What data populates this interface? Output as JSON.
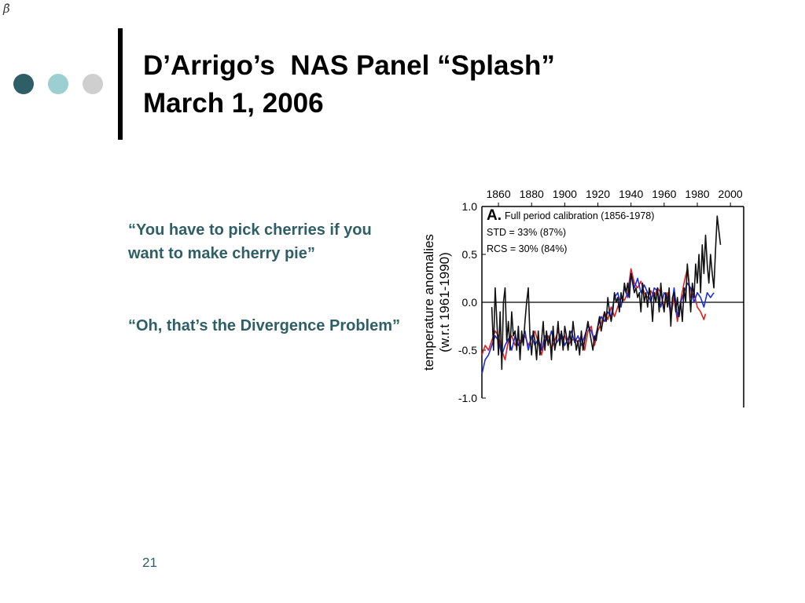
{
  "slide": {
    "corner_glyph": "β̄",
    "title_line1": "D’Arrigo’s  NAS Panel “Splash”",
    "title_line2": "March 1, 2006",
    "quote1": "“You have to pick cherries if you want to make cherry pie”",
    "quote2": "“Oh, that’s the Divergence Problem”",
    "page_number": "21",
    "colors": {
      "dot1": "#2f5f66",
      "dot2": "#9ccfd1",
      "dot3": "#cfcfcf",
      "quote_text": "#2f5f66",
      "page_number": "#2f5f66"
    }
  },
  "chart_data": {
    "type": "line",
    "panel_label": "A.",
    "annotation": "Full period calibration (1856-1978)",
    "ylabel_line1": "temperature anomalies",
    "ylabel_line2": "(w.r.t 1961-1990)",
    "x_ticks": [
      1860,
      1880,
      1900,
      1920,
      1940,
      1960,
      1980,
      2000
    ],
    "xlim": [
      1850,
      2008
    ],
    "y_ticks": [
      1.0,
      0.5,
      0.0,
      -0.5,
      -1.0
    ],
    "ylim": [
      -1.0,
      1.0
    ],
    "y_tick_labels": [
      "1.0",
      "0.5",
      "0.0",
      "-0.5",
      "-1.0"
    ],
    "zero_line": true,
    "series": [
      {
        "name": "STD = 33% (87%)",
        "color": "#e02020",
        "points": [
          [
            1850,
            -0.55
          ],
          [
            1852,
            -0.45
          ],
          [
            1854,
            -0.5
          ],
          [
            1856,
            -0.4
          ],
          [
            1858,
            -0.3
          ],
          [
            1860,
            -0.35
          ],
          [
            1862,
            -0.5
          ],
          [
            1864,
            -0.6
          ],
          [
            1866,
            -0.4
          ],
          [
            1868,
            -0.35
          ],
          [
            1870,
            -0.45
          ],
          [
            1872,
            -0.38
          ],
          [
            1874,
            -0.42
          ],
          [
            1876,
            -0.35
          ],
          [
            1878,
            -0.45
          ],
          [
            1880,
            -0.38
          ],
          [
            1882,
            -0.3
          ],
          [
            1884,
            -0.42
          ],
          [
            1886,
            -0.55
          ],
          [
            1888,
            -0.4
          ],
          [
            1890,
            -0.35
          ],
          [
            1892,
            -0.48
          ],
          [
            1894,
            -0.4
          ],
          [
            1896,
            -0.3
          ],
          [
            1898,
            -0.38
          ],
          [
            1900,
            -0.35
          ],
          [
            1902,
            -0.45
          ],
          [
            1904,
            -0.4
          ],
          [
            1906,
            -0.38
          ],
          [
            1908,
            -0.42
          ],
          [
            1910,
            -0.35
          ],
          [
            1912,
            -0.5
          ],
          [
            1914,
            -0.3
          ],
          [
            1916,
            -0.25
          ],
          [
            1918,
            -0.45
          ],
          [
            1920,
            -0.3
          ],
          [
            1922,
            -0.22
          ],
          [
            1924,
            -0.1
          ],
          [
            1926,
            -0.18
          ],
          [
            1928,
            -0.05
          ],
          [
            1930,
            -0.15
          ],
          [
            1932,
            -0.05
          ],
          [
            1934,
            0.05
          ],
          [
            1936,
            0.02
          ],
          [
            1938,
            0.1
          ],
          [
            1940,
            0.35
          ],
          [
            1942,
            0.2
          ],
          [
            1944,
            0.15
          ],
          [
            1946,
            0.22
          ],
          [
            1948,
            0.1
          ],
          [
            1950,
            0.05
          ],
          [
            1952,
            0.12
          ],
          [
            1954,
            0.05
          ],
          [
            1956,
            0.15
          ],
          [
            1958,
            0.1
          ],
          [
            1960,
            -0.05
          ],
          [
            1962,
            0.1
          ],
          [
            1964,
            -0.15
          ],
          [
            1966,
            0.05
          ],
          [
            1968,
            -0.2
          ],
          [
            1970,
            0.02
          ],
          [
            1972,
            0.2
          ],
          [
            1974,
            0.35
          ],
          [
            1976,
            0.05
          ],
          [
            1978,
            0.1
          ],
          [
            1980,
            -0.05
          ],
          [
            1982,
            -0.1
          ],
          [
            1984,
            -0.18
          ],
          [
            1985,
            -0.12
          ]
        ]
      },
      {
        "name": "RCS = 30% (84%)",
        "color": "#1a2ee0",
        "points": [
          [
            1850,
            -0.75
          ],
          [
            1852,
            -0.6
          ],
          [
            1854,
            -0.55
          ],
          [
            1856,
            -0.45
          ],
          [
            1858,
            -0.35
          ],
          [
            1860,
            -0.4
          ],
          [
            1862,
            -0.55
          ],
          [
            1864,
            -0.45
          ],
          [
            1866,
            -0.38
          ],
          [
            1868,
            -0.5
          ],
          [
            1870,
            -0.35
          ],
          [
            1872,
            -0.45
          ],
          [
            1874,
            -0.4
          ],
          [
            1876,
            -0.3
          ],
          [
            1878,
            -0.5
          ],
          [
            1880,
            -0.35
          ],
          [
            1882,
            -0.45
          ],
          [
            1884,
            -0.38
          ],
          [
            1886,
            -0.5
          ],
          [
            1888,
            -0.35
          ],
          [
            1890,
            -0.42
          ],
          [
            1892,
            -0.3
          ],
          [
            1894,
            -0.45
          ],
          [
            1896,
            -0.4
          ],
          [
            1898,
            -0.32
          ],
          [
            1900,
            -0.45
          ],
          [
            1902,
            -0.38
          ],
          [
            1904,
            -0.3
          ],
          [
            1906,
            -0.42
          ],
          [
            1908,
            -0.35
          ],
          [
            1910,
            -0.45
          ],
          [
            1912,
            -0.35
          ],
          [
            1914,
            -0.25
          ],
          [
            1916,
            -0.3
          ],
          [
            1918,
            -0.4
          ],
          [
            1920,
            -0.25
          ],
          [
            1922,
            -0.15
          ],
          [
            1924,
            -0.2
          ],
          [
            1926,
            -0.1
          ],
          [
            1928,
            -0.15
          ],
          [
            1930,
            0.05
          ],
          [
            1932,
            0.1
          ],
          [
            1934,
            -0.05
          ],
          [
            1936,
            0.15
          ],
          [
            1938,
            0.05
          ],
          [
            1940,
            0.3
          ],
          [
            1942,
            0.15
          ],
          [
            1944,
            0.25
          ],
          [
            1946,
            0.1
          ],
          [
            1948,
            0.18
          ],
          [
            1950,
            0.1
          ],
          [
            1952,
            0.0
          ],
          [
            1954,
            0.15
          ],
          [
            1956,
            0.12
          ],
          [
            1958,
            -0.05
          ],
          [
            1960,
            0.1
          ],
          [
            1962,
            0.05
          ],
          [
            1964,
            -0.1
          ],
          [
            1966,
            0.15
          ],
          [
            1968,
            -0.15
          ],
          [
            1970,
            0.0
          ],
          [
            1972,
            0.1
          ],
          [
            1974,
            0.2
          ],
          [
            1976,
            0.15
          ],
          [
            1978,
            0.0
          ],
          [
            1980,
            0.1
          ],
          [
            1982,
            0.05
          ],
          [
            1984,
            -0.05
          ],
          [
            1986,
            0.1
          ],
          [
            1988,
            0.05
          ],
          [
            1990,
            0.1
          ]
        ]
      },
      {
        "name": "",
        "color": "#111111",
        "points": [
          [
            1856,
            -0.05
          ],
          [
            1857,
            -0.5
          ],
          [
            1858,
            0.15
          ],
          [
            1859,
            -0.2
          ],
          [
            1860,
            -0.55
          ],
          [
            1861,
            -0.1
          ],
          [
            1862,
            -0.7
          ],
          [
            1863,
            0.0
          ],
          [
            1864,
            0.15
          ],
          [
            1865,
            -0.4
          ],
          [
            1866,
            -0.2
          ],
          [
            1867,
            -0.5
          ],
          [
            1868,
            -0.1
          ],
          [
            1869,
            -0.35
          ],
          [
            1870,
            -0.3
          ],
          [
            1871,
            -0.5
          ],
          [
            1872,
            -0.25
          ],
          [
            1873,
            -0.6
          ],
          [
            1874,
            -0.3
          ],
          [
            1875,
            -0.45
          ],
          [
            1876,
            -0.2
          ],
          [
            1877,
            0.0
          ],
          [
            1878,
            0.15
          ],
          [
            1879,
            -0.35
          ],
          [
            1880,
            -0.55
          ],
          [
            1881,
            -0.3
          ],
          [
            1882,
            -0.4
          ],
          [
            1883,
            -0.6
          ],
          [
            1884,
            -0.3
          ],
          [
            1885,
            -0.55
          ],
          [
            1886,
            -0.4
          ],
          [
            1887,
            -0.2
          ],
          [
            1888,
            -0.5
          ],
          [
            1889,
            -0.3
          ],
          [
            1890,
            -0.45
          ],
          [
            1891,
            -0.35
          ],
          [
            1892,
            -0.6
          ],
          [
            1893,
            -0.25
          ],
          [
            1894,
            -0.5
          ],
          [
            1895,
            -0.4
          ],
          [
            1896,
            -0.2
          ],
          [
            1897,
            -0.45
          ],
          [
            1898,
            -0.3
          ],
          [
            1899,
            -0.5
          ],
          [
            1900,
            -0.25
          ],
          [
            1901,
            -0.35
          ],
          [
            1902,
            -0.5
          ],
          [
            1903,
            -0.3
          ],
          [
            1904,
            -0.45
          ],
          [
            1905,
            -0.2
          ],
          [
            1906,
            -0.35
          ],
          [
            1907,
            -0.5
          ],
          [
            1908,
            -0.4
          ],
          [
            1909,
            -0.55
          ],
          [
            1910,
            -0.3
          ],
          [
            1911,
            -0.5
          ],
          [
            1912,
            -0.4
          ],
          [
            1913,
            -0.3
          ],
          [
            1914,
            -0.2
          ],
          [
            1915,
            -0.3
          ],
          [
            1916,
            -0.4
          ],
          [
            1917,
            -0.5
          ],
          [
            1918,
            -0.35
          ],
          [
            1919,
            -0.4
          ],
          [
            1920,
            -0.25
          ],
          [
            1921,
            -0.15
          ],
          [
            1922,
            -0.3
          ],
          [
            1923,
            -0.2
          ],
          [
            1924,
            -0.1
          ],
          [
            1925,
            -0.2
          ],
          [
            1926,
            0.05
          ],
          [
            1927,
            -0.1
          ],
          [
            1928,
            -0.2
          ],
          [
            1929,
            -0.1
          ],
          [
            1930,
            0.1
          ],
          [
            1931,
            0.0
          ],
          [
            1932,
            0.05
          ],
          [
            1933,
            -0.1
          ],
          [
            1934,
            0.1
          ],
          [
            1935,
            0.0
          ],
          [
            1936,
            0.2
          ],
          [
            1937,
            0.1
          ],
          [
            1938,
            0.2
          ],
          [
            1939,
            0.05
          ],
          [
            1940,
            0.3
          ],
          [
            1941,
            0.2
          ],
          [
            1942,
            0.1
          ],
          [
            1943,
            0.15
          ],
          [
            1944,
            0.05
          ],
          [
            1945,
            0.1
          ],
          [
            1946,
            -0.1
          ],
          [
            1947,
            0.2
          ],
          [
            1948,
            0.0
          ],
          [
            1949,
            0.1
          ],
          [
            1950,
            -0.05
          ],
          [
            1951,
            0.15
          ],
          [
            1952,
            0.05
          ],
          [
            1953,
            -0.2
          ],
          [
            1954,
            0.1
          ],
          [
            1955,
            0.0
          ],
          [
            1956,
            0.15
          ],
          [
            1957,
            -0.1
          ],
          [
            1958,
            0.2
          ],
          [
            1959,
            0.0
          ],
          [
            1960,
            -0.1
          ],
          [
            1961,
            0.1
          ],
          [
            1962,
            -0.05
          ],
          [
            1963,
            0.15
          ],
          [
            1964,
            -0.25
          ],
          [
            1965,
            0.05
          ],
          [
            1966,
            0.1
          ],
          [
            1967,
            -0.1
          ],
          [
            1968,
            0.05
          ],
          [
            1969,
            -0.15
          ],
          [
            1970,
            0.0
          ],
          [
            1971,
            -0.2
          ],
          [
            1972,
            0.15
          ],
          [
            1973,
            0.0
          ],
          [
            1974,
            0.4
          ],
          [
            1975,
            0.2
          ],
          [
            1976,
            -0.1
          ],
          [
            1977,
            0.2
          ],
          [
            1978,
            0.05
          ],
          [
            1979,
            0.4
          ],
          [
            1980,
            0.2
          ],
          [
            1981,
            0.5
          ],
          [
            1982,
            0.1
          ],
          [
            1983,
            0.6
          ],
          [
            1984,
            0.3
          ],
          [
            1985,
            0.7
          ],
          [
            1986,
            0.4
          ],
          [
            1987,
            0.2
          ],
          [
            1988,
            0.5
          ],
          [
            1989,
            0.3
          ],
          [
            1990,
            0.15
          ],
          [
            1991,
            0.55
          ],
          [
            1992,
            0.9
          ],
          [
            1993,
            0.75
          ],
          [
            1994,
            0.6
          ]
        ]
      }
    ]
  }
}
